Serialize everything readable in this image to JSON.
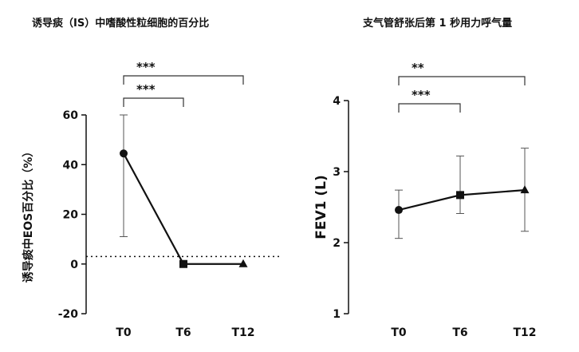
{
  "chart_data": [
    {
      "type": "line",
      "title": "诱导痰（IS）中嗜酸性粒细胞的百分比",
      "ylabel": "诱导痰中EOS百分比（%）",
      "xlabel": "",
      "categories": [
        "T0",
        "T6",
        "T12"
      ],
      "series": [
        {
          "values": [
            44.5,
            0,
            0
          ],
          "error_low": [
            11,
            0,
            0
          ],
          "error_high": [
            60,
            0,
            0
          ],
          "markers": [
            "circle",
            "square",
            "triangle"
          ]
        }
      ],
      "reference_line": {
        "y": 3,
        "style": "dotted"
      },
      "ylim": [
        -20,
        60
      ],
      "yticks": [
        "-20",
        "0",
        "20",
        "40",
        "60"
      ],
      "grid": false,
      "significance": [
        {
          "from": "T0",
          "to": "T6",
          "label": "***"
        },
        {
          "from": "T0",
          "to": "T12",
          "label": "***"
        }
      ]
    },
    {
      "type": "line",
      "title": "支气管舒张后第 1 秒用力呼气量",
      "ylabel": "FEV1 (L)",
      "xlabel": "",
      "categories": [
        "T0",
        "T6",
        "T12"
      ],
      "series": [
        {
          "values": [
            2.46,
            2.67,
            2.74
          ],
          "error_low": [
            2.06,
            2.41,
            2.16
          ],
          "error_high": [
            2.74,
            3.22,
            3.33
          ],
          "markers": [
            "circle",
            "square",
            "triangle"
          ]
        }
      ],
      "ylim": [
        1,
        4
      ],
      "yticks": [
        "1",
        "2",
        "3",
        "4"
      ],
      "grid": false,
      "significance": [
        {
          "from": "T0",
          "to": "T6",
          "label": "***"
        },
        {
          "from": "T0",
          "to": "T12",
          "label": "**"
        }
      ]
    }
  ]
}
